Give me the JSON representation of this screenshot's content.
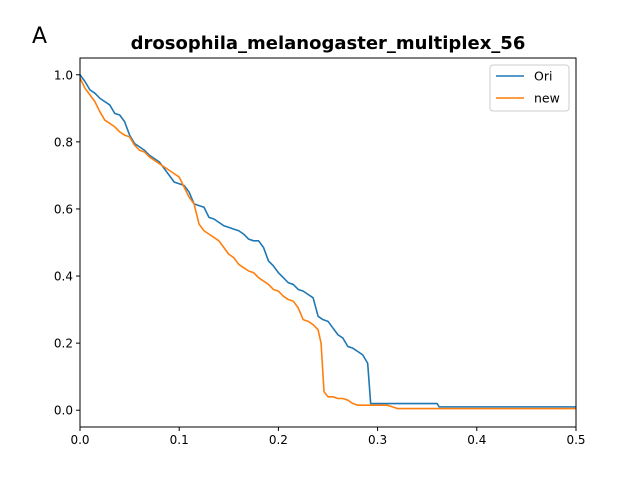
{
  "panel_label": "A",
  "chart_data": {
    "type": "line",
    "title": "drosophila_melanogaster_multiplex_56",
    "xlabel": "",
    "ylabel": "",
    "xlim": [
      0,
      0.5
    ],
    "ylim": [
      -0.05,
      1.05
    ],
    "xticks": [
      "0.0",
      "0.1",
      "0.2",
      "0.3",
      "0.4",
      "0.5"
    ],
    "yticks": [
      "0.0",
      "0.2",
      "0.4",
      "0.6",
      "0.8",
      "1.0"
    ],
    "grid": false,
    "legend_position": "top-right",
    "series": [
      {
        "name": "Ori",
        "color": "#1f77b4",
        "x": [
          0.0,
          0.005,
          0.01,
          0.015,
          0.02,
          0.025,
          0.03,
          0.035,
          0.04,
          0.045,
          0.05,
          0.055,
          0.06,
          0.065,
          0.07,
          0.075,
          0.08,
          0.085,
          0.09,
          0.095,
          0.1,
          0.105,
          0.11,
          0.115,
          0.12,
          0.125,
          0.13,
          0.135,
          0.14,
          0.145,
          0.15,
          0.155,
          0.16,
          0.165,
          0.17,
          0.175,
          0.18,
          0.185,
          0.19,
          0.195,
          0.2,
          0.205,
          0.21,
          0.215,
          0.22,
          0.225,
          0.23,
          0.235,
          0.24,
          0.245,
          0.25,
          0.255,
          0.26,
          0.265,
          0.27,
          0.275,
          0.28,
          0.285,
          0.29,
          0.293,
          0.3,
          0.36,
          0.362,
          0.5
        ],
        "y": [
          1.0,
          0.98,
          0.955,
          0.945,
          0.93,
          0.92,
          0.91,
          0.885,
          0.88,
          0.86,
          0.82,
          0.795,
          0.785,
          0.775,
          0.76,
          0.75,
          0.74,
          0.72,
          0.7,
          0.68,
          0.675,
          0.67,
          0.65,
          0.615,
          0.61,
          0.605,
          0.575,
          0.57,
          0.56,
          0.55,
          0.545,
          0.54,
          0.535,
          0.525,
          0.51,
          0.505,
          0.505,
          0.485,
          0.445,
          0.43,
          0.41,
          0.395,
          0.38,
          0.375,
          0.36,
          0.355,
          0.345,
          0.335,
          0.28,
          0.27,
          0.265,
          0.245,
          0.225,
          0.215,
          0.19,
          0.185,
          0.175,
          0.165,
          0.14,
          0.02,
          0.02,
          0.02,
          0.01,
          0.01
        ]
      },
      {
        "name": "new",
        "color": "#ff7f0e",
        "x": [
          0.0,
          0.005,
          0.01,
          0.015,
          0.02,
          0.025,
          0.03,
          0.035,
          0.04,
          0.045,
          0.05,
          0.055,
          0.06,
          0.065,
          0.07,
          0.075,
          0.08,
          0.085,
          0.09,
          0.095,
          0.1,
          0.105,
          0.11,
          0.115,
          0.12,
          0.125,
          0.13,
          0.135,
          0.14,
          0.145,
          0.15,
          0.155,
          0.16,
          0.165,
          0.17,
          0.175,
          0.18,
          0.185,
          0.19,
          0.195,
          0.2,
          0.205,
          0.21,
          0.215,
          0.22,
          0.225,
          0.23,
          0.235,
          0.24,
          0.243,
          0.246,
          0.25,
          0.255,
          0.26,
          0.265,
          0.27,
          0.275,
          0.28,
          0.3,
          0.31,
          0.32,
          0.44,
          0.442,
          0.5
        ],
        "y": [
          0.99,
          0.96,
          0.94,
          0.92,
          0.89,
          0.865,
          0.855,
          0.845,
          0.83,
          0.82,
          0.815,
          0.79,
          0.775,
          0.77,
          0.755,
          0.745,
          0.735,
          0.725,
          0.715,
          0.705,
          0.695,
          0.665,
          0.635,
          0.615,
          0.555,
          0.535,
          0.525,
          0.515,
          0.505,
          0.485,
          0.465,
          0.455,
          0.435,
          0.425,
          0.415,
          0.41,
          0.395,
          0.385,
          0.375,
          0.36,
          0.355,
          0.34,
          0.33,
          0.325,
          0.305,
          0.27,
          0.265,
          0.255,
          0.24,
          0.2,
          0.055,
          0.04,
          0.04,
          0.035,
          0.035,
          0.03,
          0.02,
          0.015,
          0.015,
          0.015,
          0.005,
          0.005,
          0.005,
          0.005
        ]
      }
    ]
  }
}
